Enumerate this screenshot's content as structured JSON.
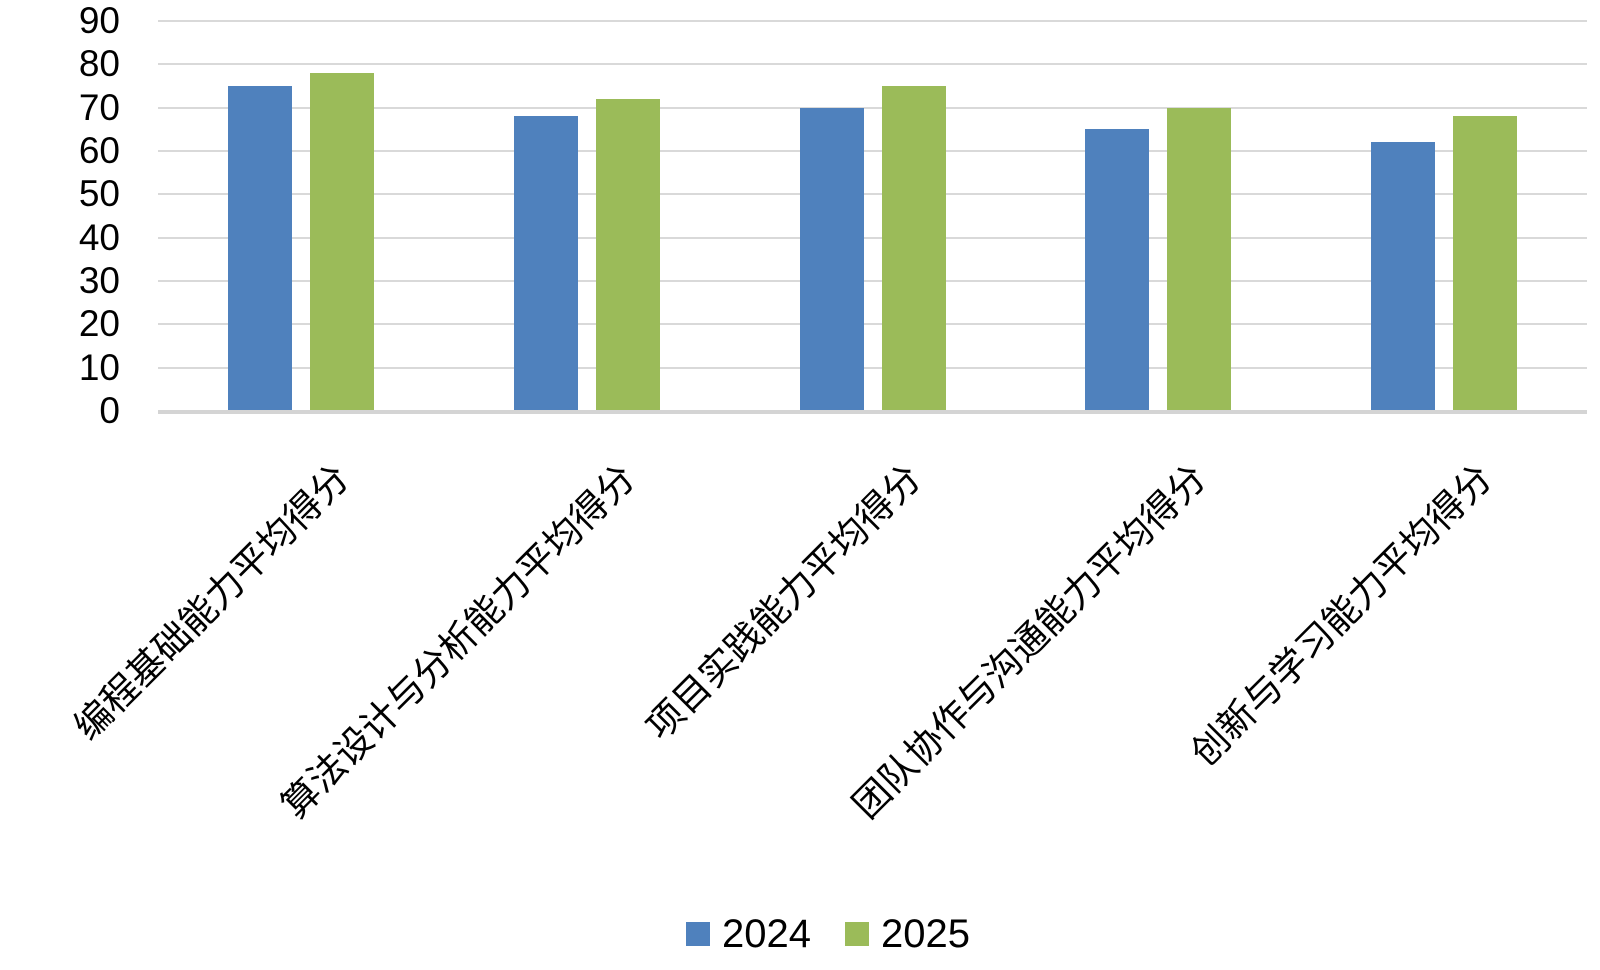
{
  "chart_data": {
    "type": "bar",
    "title": "",
    "xlabel": "",
    "ylabel": "",
    "categories": [
      "编程基础能力平均得分",
      "算法设计与分析能力平均得分",
      "项目实践能力平均得分",
      "团队协作与沟通能力平均得分",
      "创新与学习能力平均得分"
    ],
    "series": [
      {
        "name": "2024",
        "color": "#4F81BD",
        "values": [
          75,
          68,
          70,
          65,
          62
        ]
      },
      {
        "name": "2025",
        "color": "#9BBB59",
        "values": [
          78,
          72,
          75,
          70,
          68
        ]
      }
    ],
    "ylim": [
      0,
      90
    ],
    "ytick_labels": [
      "0",
      "10",
      "20",
      "30",
      "40",
      "50",
      "60",
      "70",
      "80",
      "90"
    ],
    "grid": "horizontal",
    "legend_position": "bottom",
    "xlabel_rotation_deg": -45
  },
  "colors": {
    "background": "#FFFFFF",
    "gridline": "#D9D9D9",
    "axis_line": "#D4D4D4",
    "text": "#000000",
    "series_2024": "#4F81BD",
    "series_2025": "#9BBB59"
  }
}
